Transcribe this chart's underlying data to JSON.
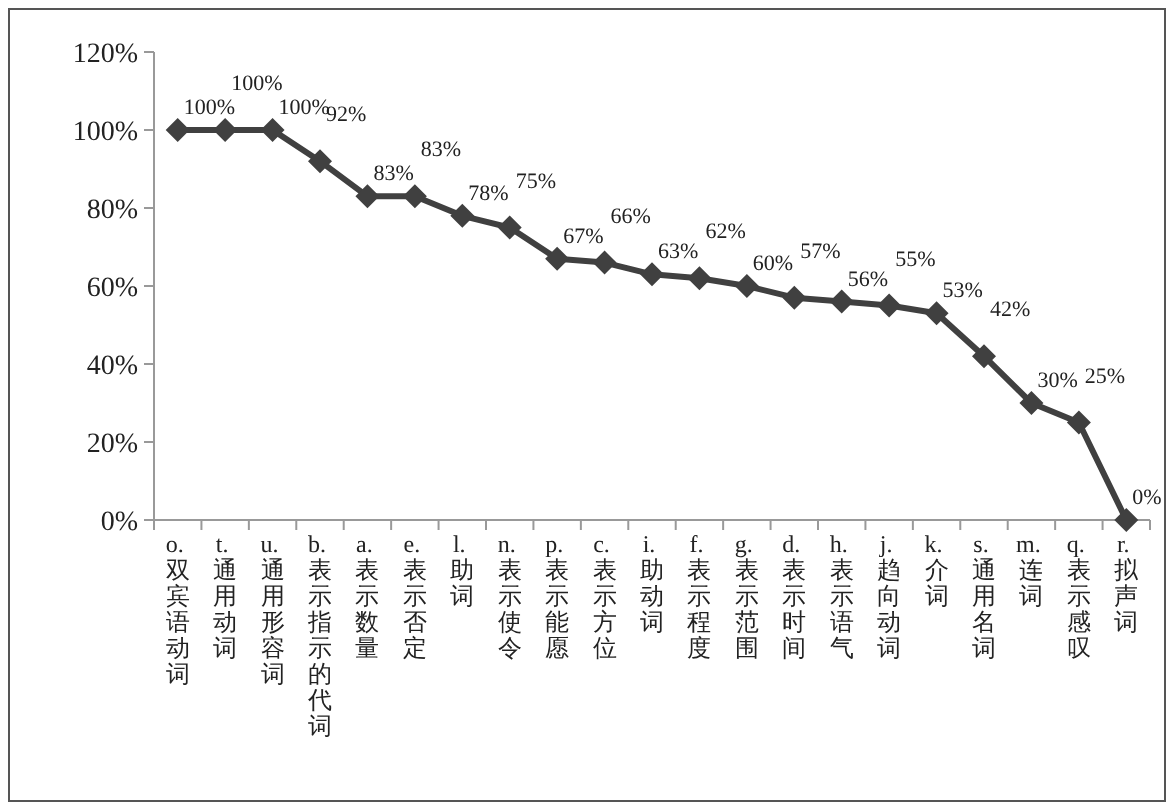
{
  "chart_data": {
    "type": "line",
    "categories": [
      "o. 双宾语动词",
      "t. 通用动词",
      "u. 通用形容词",
      "b. 表示指示的代词",
      "a. 表示数量",
      "e. 表示否定",
      "l. 助词",
      "n. 表示使令",
      "p. 表示能愿",
      "c. 表示方位",
      "i. 助动词",
      "f. 表示程度",
      "g. 表示范围",
      "d. 表示时间",
      "h. 表示语气",
      "j. 趋向动词",
      "k. 介词",
      "s. 通用名词",
      "m. 连词",
      "q. 表示感叹",
      "r. 拟声词"
    ],
    "series": [
      {
        "color": "#404040",
        "values": [
          100,
          100,
          100,
          92,
          83,
          83,
          78,
          75,
          67,
          66,
          63,
          62,
          60,
          57,
          56,
          55,
          53,
          42,
          30,
          25,
          0
        ],
        "value_labels": [
          "100%",
          "100%",
          "100%",
          "92%",
          "83%",
          "83%",
          "78%",
          "75%",
          "67%",
          "66%",
          "63%",
          "62%",
          "60%",
          "57%",
          "56%",
          "55%",
          "53%",
          "42%",
          "30%",
          "25%",
          "0%"
        ]
      }
    ],
    "ylim": [
      0,
      120
    ],
    "yticks": [
      {
        "value": 0,
        "label": "0%"
      },
      {
        "value": 20,
        "label": "20%"
      },
      {
        "value": 40,
        "label": "40%"
      },
      {
        "value": 60,
        "label": "60%"
      },
      {
        "value": 80,
        "label": "80%"
      },
      {
        "value": 100,
        "label": "100%"
      },
      {
        "value": 120,
        "label": "120%"
      }
    ],
    "marker": "diamond",
    "line_style": "solid",
    "grid": false
  }
}
